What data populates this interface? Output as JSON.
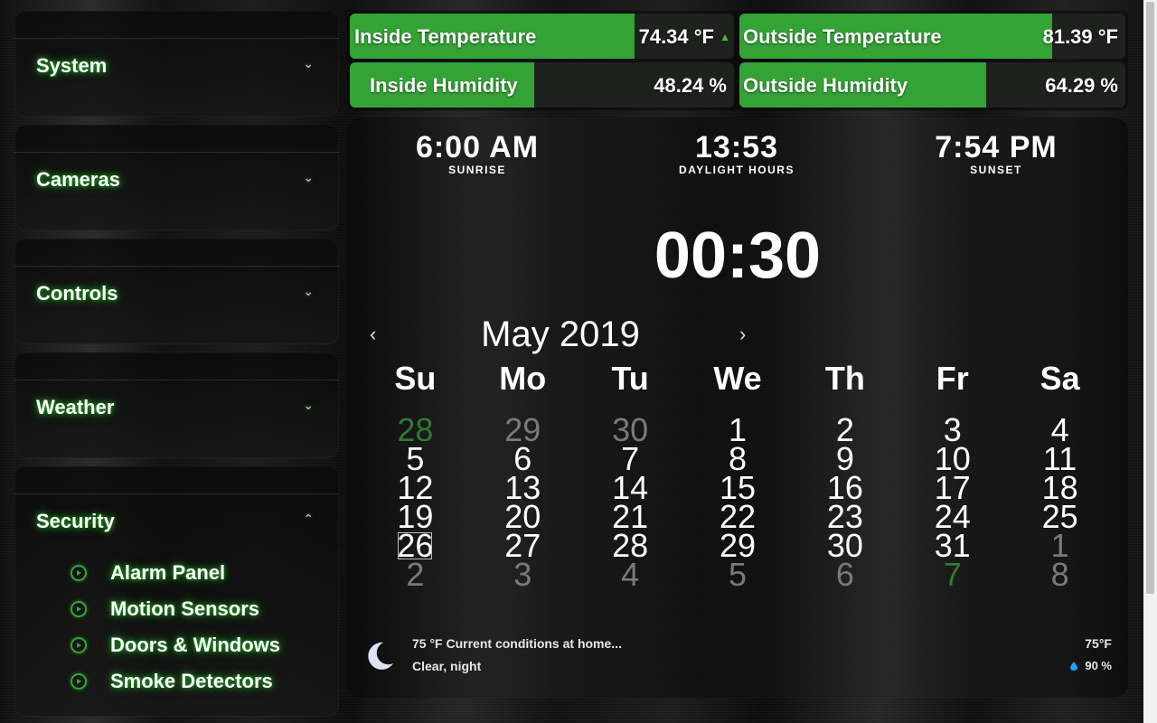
{
  "sidebar": {
    "sections": [
      {
        "label": "System",
        "chevron": "chevron-down-icon"
      },
      {
        "label": "Cameras",
        "chevron": "chevron-down-icon"
      },
      {
        "label": "Controls",
        "chevron": "chevron-down-icon"
      },
      {
        "label": "Weather",
        "chevron": "chevron-down-icon"
      },
      {
        "label": "Security",
        "chevron": "chevron-up-icon",
        "items": [
          {
            "label": "Alarm Panel",
            "icon": "play-circle-icon"
          },
          {
            "label": "Motion Sensors",
            "icon": "play-circle-icon"
          },
          {
            "label": "Doors & Windows",
            "icon": "play-circle-icon"
          },
          {
            "label": "Smoke Detectors",
            "icon": "play-circle-icon"
          }
        ]
      }
    ]
  },
  "sensors": {
    "inside_temp": {
      "label": "Inside Temperature",
      "value": "74.34 °F",
      "level": 0.74,
      "trend": "up-arrow-icon"
    },
    "outside_temp": {
      "label": "Outside Temperature",
      "value": "81.39 °F",
      "level": 0.81
    },
    "inside_humidity": {
      "label": "Inside Humidity",
      "value": "48.24 %",
      "level": 0.48
    },
    "outside_humidity": {
      "label": "Outside Humidity",
      "value": "64.29 %",
      "level": 0.64
    }
  },
  "sun": {
    "sunrise": {
      "time": "6:00 AM",
      "label": "SUNRISE"
    },
    "daylight": {
      "time": "13:53",
      "label": "DAYLIGHT HOURS"
    },
    "sunset": {
      "time": "7:54 PM",
      "label": "SUNSET"
    }
  },
  "clock": {
    "time": "00:30"
  },
  "calendar": {
    "month_label": "May 2019",
    "prev": "‹",
    "next": "›",
    "days_of_week": [
      "Su",
      "Mo",
      "Tu",
      "We",
      "Th",
      "Fr",
      "Sa"
    ],
    "weeks": [
      [
        "28",
        "29",
        "30",
        "1",
        "2",
        "3",
        "4"
      ],
      [
        "5",
        "6",
        "7",
        "8",
        "9",
        "10",
        "11"
      ],
      [
        "12",
        "13",
        "14",
        "15",
        "16",
        "17",
        "18"
      ],
      [
        "19",
        "20",
        "21",
        "22",
        "23",
        "24",
        "25"
      ],
      [
        "26",
        "27",
        "28",
        "29",
        "30",
        "31",
        "1"
      ],
      [
        "2",
        "3",
        "4",
        "5",
        "6",
        "7",
        "8"
      ]
    ],
    "today": "26"
  },
  "weather": {
    "icon": "moon-icon",
    "summary": "75 °F Current conditions at home...",
    "condition": "Clear, night",
    "temp": "75°F",
    "humidity": "90 %"
  },
  "colors": {
    "accent": "#34a336",
    "glow": "#23b323"
  }
}
